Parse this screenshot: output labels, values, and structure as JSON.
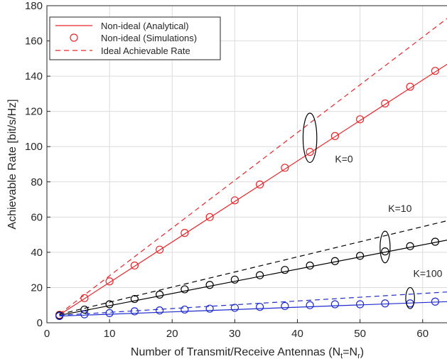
{
  "chart_data": {
    "type": "line",
    "xlabel": "Number of Transmit/Receive Antennas (N",
    "xlabel_sub1": "t",
    "xlabel_mid": "=N",
    "xlabel_sub2": "r",
    "xlabel_end": ")",
    "ylabel": "Achievable Rate [bit/s/Hz]",
    "xlim": [
      0,
      64
    ],
    "ylim": [
      0,
      180
    ],
    "xticks": [
      0,
      10,
      20,
      30,
      40,
      50,
      60
    ],
    "yticks": [
      0,
      20,
      40,
      60,
      80,
      100,
      120,
      140,
      160,
      180
    ],
    "grid": true,
    "legend_position": "top-left",
    "legend": [
      {
        "label": "Non-ideal (Analytical)",
        "style": "solid-line"
      },
      {
        "label": "Non-ideal (Simulations)",
        "style": "circle-marker"
      },
      {
        "label": "Ideal Achievable Rate",
        "style": "dashed-line"
      }
    ],
    "annotations": [
      {
        "text": "K=0",
        "x": 46,
        "y": 91,
        "ellipse_x": 42,
        "ellipse_y": 105,
        "ellipse_rx": 1.1,
        "ellipse_ry": 14
      },
      {
        "text": "K=10",
        "x": 54.5,
        "y": 63,
        "ellipse_x": 54,
        "ellipse_y": 43,
        "ellipse_rx": 0.8,
        "ellipse_ry": 9
      },
      {
        "text": "K=100",
        "x": 58.5,
        "y": 26,
        "ellipse_x": 58,
        "ellipse_y": 14,
        "ellipse_rx": 0.7,
        "ellipse_ry": 6
      }
    ],
    "series": [
      {
        "key": "k0",
        "color": "#e8262a",
        "analytical": {
          "x": [
            2,
            64
          ],
          "y": [
            4.5,
            147
          ]
        },
        "ideal": {
          "x": [
            2,
            64
          ],
          "y": [
            5,
            173
          ]
        },
        "simulations": {
          "x": [
            2,
            6,
            10,
            14,
            18,
            22,
            26,
            30,
            34,
            38,
            42,
            46,
            50,
            54,
            58,
            62
          ],
          "y": [
            4.5,
            14,
            23.5,
            32.5,
            41.5,
            51,
            60,
            69.5,
            78.5,
            88,
            97,
            106,
            115.5,
            124.5,
            134,
            143
          ]
        }
      },
      {
        "key": "k10",
        "color": "#000000",
        "analytical": {
          "x": [
            2,
            64
          ],
          "y": [
            4.2,
            47
          ]
        },
        "ideal": {
          "x": [
            2,
            64
          ],
          "y": [
            4.8,
            58
          ]
        },
        "simulations": {
          "x": [
            2,
            6,
            10,
            14,
            18,
            22,
            26,
            30,
            34,
            38,
            42,
            46,
            50,
            54,
            58,
            62
          ],
          "y": [
            4.2,
            7.5,
            10.5,
            13.5,
            16,
            19,
            21.5,
            24.5,
            27,
            30,
            32.5,
            35,
            38,
            40.5,
            43.5,
            46
          ]
        }
      },
      {
        "key": "k100",
        "color": "#1f2ccf",
        "analytical": {
          "x": [
            2,
            64
          ],
          "y": [
            3.8,
            12
          ]
        },
        "ideal": {
          "x": [
            2,
            64
          ],
          "y": [
            4.2,
            17.5
          ]
        },
        "simulations": {
          "x": [
            2,
            6,
            10,
            14,
            18,
            22,
            26,
            30,
            34,
            38,
            42,
            46,
            50,
            54,
            58,
            62
          ],
          "y": [
            3.8,
            4.8,
            5.5,
            6.5,
            7,
            7.5,
            8,
            8.5,
            9,
            9.5,
            10,
            10.5,
            10.5,
            11,
            11,
            12
          ]
        }
      }
    ]
  }
}
